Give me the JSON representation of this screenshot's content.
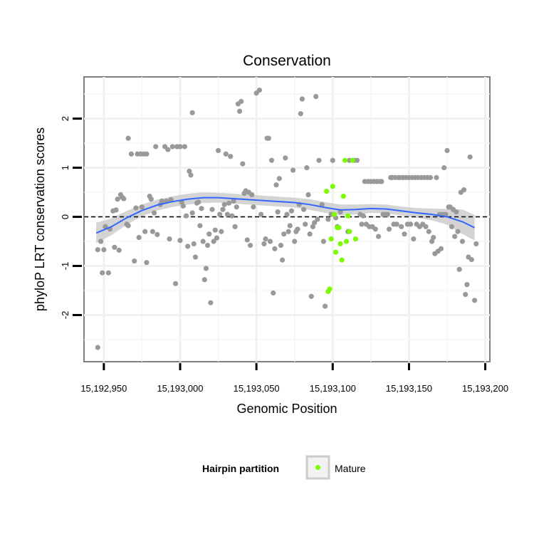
{
  "chart_data": {
    "type": "scatter",
    "title": "Conservation",
    "xlabel": "Genomic Position",
    "ylabel": "phyloP LRT conservation scores",
    "xlim": [
      15192937,
      15193203
    ],
    "ylim": [
      -2.95,
      2.85
    ],
    "x_ticks": [
      {
        "value": 15192950,
        "label": "15,192,950"
      },
      {
        "value": 15193000,
        "label": "15,193,000"
      },
      {
        "value": 15193050,
        "label": "15,193,050"
      },
      {
        "value": 15193100,
        "label": "15,193,100"
      },
      {
        "value": 15193150,
        "label": "15,193,150"
      },
      {
        "value": 15193200,
        "label": "15,193,200"
      }
    ],
    "y_ticks": [
      {
        "value": -2,
        "label": "-2"
      },
      {
        "value": -1,
        "label": "-1"
      },
      {
        "value": 0,
        "label": "0"
      },
      {
        "value": 1,
        "label": "1"
      },
      {
        "value": 2,
        "label": "2"
      }
    ],
    "reference_line": {
      "y": 0,
      "style": "dashed"
    },
    "grid": true,
    "legend": {
      "title": "Hairpin partition",
      "placement": "bottom",
      "entries": [
        {
          "label": "Mature",
          "color": "#7cfc00"
        }
      ]
    },
    "series": [
      {
        "color": "#999999",
        "points": [
          [
            15192946,
            -2.66
          ],
          [
            15192946,
            -0.67
          ],
          [
            15192948,
            -0.5
          ],
          [
            15192949,
            -1.14
          ],
          [
            15192950,
            -0.67
          ],
          [
            15192951,
            -0.2
          ],
          [
            15192953,
            -1.14
          ],
          [
            15192954,
            -0.25
          ],
          [
            15192956,
            0.12
          ],
          [
            15192957,
            -0.62
          ],
          [
            15192958,
            0.14
          ],
          [
            15192959,
            0.36
          ],
          [
            15192960,
            -0.68
          ],
          [
            15192961,
            0.45
          ],
          [
            15192962,
            0.4
          ],
          [
            15192963,
            0.37
          ],
          [
            15192965,
            -0.15
          ],
          [
            15192966,
            1.6
          ],
          [
            15192966,
            -0.18
          ],
          [
            15192968,
            1.28
          ],
          [
            15192970,
            -0.9
          ],
          [
            15192971,
            0.18
          ],
          [
            15192972,
            1.28
          ],
          [
            15192973,
            -0.42
          ],
          [
            15192974,
            1.28
          ],
          [
            15192975,
            0.2
          ],
          [
            15192976,
            1.28
          ],
          [
            15192977,
            -0.3
          ],
          [
            15192978,
            1.28
          ],
          [
            15192978,
            -0.93
          ],
          [
            15192980,
            0.42
          ],
          [
            15192981,
            0.36
          ],
          [
            15192982,
            -0.3
          ],
          [
            15192983,
            0.08
          ],
          [
            15192984,
            1.43
          ],
          [
            15192985,
            -0.36
          ],
          [
            15192987,
            0.25
          ],
          [
            15192988,
            0.32
          ],
          [
            15192990,
            1.43
          ],
          [
            15192991,
            0.32
          ],
          [
            15192992,
            1.37
          ],
          [
            15192993,
            -0.45
          ],
          [
            15192994,
            0.35
          ],
          [
            15192995,
            1.43
          ],
          [
            15192997,
            -1.36
          ],
          [
            15192998,
            1.43
          ],
          [
            15193000,
            1.43
          ],
          [
            15193000,
            -0.48
          ],
          [
            15193001,
            0.3
          ],
          [
            15193002,
            0.22
          ],
          [
            15193003,
            1.43
          ],
          [
            15193004,
            0.02
          ],
          [
            15193005,
            -0.6
          ],
          [
            15193006,
            0.93
          ],
          [
            15193007,
            0.85
          ],
          [
            15193008,
            0.08
          ],
          [
            15193008,
            2.12
          ],
          [
            15193009,
            -0.55
          ],
          [
            15193010,
            -0.82
          ],
          [
            15193011,
            0.28
          ],
          [
            15193012,
            0.3
          ],
          [
            15193013,
            -0.18
          ],
          [
            15193014,
            0.17
          ],
          [
            15193015,
            -0.5
          ],
          [
            15193016,
            -1.28
          ],
          [
            15193017,
            -1.05
          ],
          [
            15193018,
            -0.58
          ],
          [
            15193019,
            -0.35
          ],
          [
            15193020,
            -1.75
          ],
          [
            15193021,
            0.15
          ],
          [
            15193022,
            -0.5
          ],
          [
            15193023,
            -0.27
          ],
          [
            15193024,
            -0.43
          ],
          [
            15193025,
            1.35
          ],
          [
            15193026,
            0.05
          ],
          [
            15193027,
            -0.3
          ],
          [
            15193028,
            0.15
          ],
          [
            15193029,
            0.25
          ],
          [
            15193030,
            1.28
          ],
          [
            15193031,
            0.05
          ],
          [
            15193032,
            0.28
          ],
          [
            15193033,
            1.23
          ],
          [
            15193034,
            0.02
          ],
          [
            15193035,
            0.32
          ],
          [
            15193036,
            -0.2
          ],
          [
            15193037,
            0.2
          ],
          [
            15193038,
            2.3
          ],
          [
            15193039,
            2.15
          ],
          [
            15193040,
            2.35
          ],
          [
            15193041,
            1.08
          ],
          [
            15193042,
            0.48
          ],
          [
            15193043,
            0.53
          ],
          [
            15193044,
            -0.47
          ],
          [
            15193045,
            0.5
          ],
          [
            15193046,
            -0.58
          ],
          [
            15193047,
            0.45
          ],
          [
            15193048,
            0.2
          ],
          [
            15193050,
            2.52
          ],
          [
            15193052,
            2.58
          ],
          [
            15193053,
            0.05
          ],
          [
            15193055,
            -0.55
          ],
          [
            15193056,
            -0.45
          ],
          [
            15193057,
            1.6
          ],
          [
            15193058,
            1.6
          ],
          [
            15193059,
            -0.5
          ],
          [
            15193060,
            1.15
          ],
          [
            15193061,
            -1.55
          ],
          [
            15193062,
            -0.65
          ],
          [
            15193063,
            0.65
          ],
          [
            15193064,
            0.1
          ],
          [
            15193065,
            0.78
          ],
          [
            15193066,
            -0.58
          ],
          [
            15193067,
            -0.88
          ],
          [
            15193068,
            -0.35
          ],
          [
            15193069,
            1.2
          ],
          [
            15193070,
            0.05
          ],
          [
            15193071,
            -0.3
          ],
          [
            15193072,
            -0.18
          ],
          [
            15193073,
            0.12
          ],
          [
            15193074,
            0.95
          ],
          [
            15193075,
            -0.5
          ],
          [
            15193076,
            -0.3
          ],
          [
            15193077,
            -0.25
          ],
          [
            15193078,
            0.25
          ],
          [
            15193079,
            2.1
          ],
          [
            15193080,
            2.4
          ],
          [
            15193081,
            0.15
          ],
          [
            15193082,
            -0.15
          ],
          [
            15193083,
            1.0
          ],
          [
            15193084,
            0.45
          ],
          [
            15193085,
            -0.35
          ],
          [
            15193086,
            -1.62
          ],
          [
            15193087,
            -0.2
          ],
          [
            15193088,
            -0.12
          ],
          [
            15193089,
            2.45
          ],
          [
            15193090,
            -0.05
          ],
          [
            15193091,
            1.15
          ],
          [
            15193093,
            0.25
          ],
          [
            15193094,
            -0.5
          ],
          [
            15193095,
            -1.82
          ],
          [
            15193097,
            -0.05
          ],
          [
            15193099,
            0.05
          ],
          [
            15193100,
            1.15
          ],
          [
            15193102,
            -0.02
          ],
          [
            15193103,
            -0.2
          ],
          [
            15193105,
            0.1
          ],
          [
            15193110,
            -0.3
          ],
          [
            15193111,
            1.15
          ],
          [
            15193114,
            1.15
          ],
          [
            15193116,
            1.15
          ],
          [
            15193118,
            0.05
          ],
          [
            15193119,
            -0.15
          ],
          [
            15193120,
            0.02
          ],
          [
            15193121,
            0.72
          ],
          [
            15193122,
            -0.15
          ],
          [
            15193123,
            0.72
          ],
          [
            15193124,
            -0.2
          ],
          [
            15193125,
            0.72
          ],
          [
            15193126,
            -0.2
          ],
          [
            15193127,
            0.72
          ],
          [
            15193128,
            -0.25
          ],
          [
            15193129,
            0.72
          ],
          [
            15193130,
            -0.4
          ],
          [
            15193131,
            0.72
          ],
          [
            15193132,
            0.72
          ],
          [
            15193133,
            0.05
          ],
          [
            15193134,
            0.05
          ],
          [
            15193135,
            0.05
          ],
          [
            15193136,
            0.05
          ],
          [
            15193137,
            -0.25
          ],
          [
            15193138,
            0.8
          ],
          [
            15193139,
            0.8
          ],
          [
            15193140,
            -0.15
          ],
          [
            15193141,
            0.8
          ],
          [
            15193142,
            -0.15
          ],
          [
            15193143,
            0.8
          ],
          [
            15193144,
            0.8
          ],
          [
            15193145,
            -0.2
          ],
          [
            15193146,
            0.8
          ],
          [
            15193147,
            -0.35
          ],
          [
            15193148,
            0.8
          ],
          [
            15193149,
            -0.15
          ],
          [
            15193150,
            0.8
          ],
          [
            15193151,
            -0.15
          ],
          [
            15193152,
            0.8
          ],
          [
            15193153,
            -0.45
          ],
          [
            15193154,
            0.8
          ],
          [
            15193155,
            -0.15
          ],
          [
            15193156,
            0.8
          ],
          [
            15193157,
            -0.2
          ],
          [
            15193158,
            0.8
          ],
          [
            15193159,
            -0.15
          ],
          [
            15193160,
            0.8
          ],
          [
            15193161,
            -0.2
          ],
          [
            15193162,
            0.8
          ],
          [
            15193163,
            -0.3
          ],
          [
            15193164,
            0.8
          ],
          [
            15193165,
            -0.5
          ],
          [
            15193166,
            -0.42
          ],
          [
            15193167,
            -0.75
          ],
          [
            15193168,
            0.8
          ],
          [
            15193169,
            -0.7
          ],
          [
            15193170,
            0.05
          ],
          [
            15193171,
            -0.65
          ],
          [
            15193172,
            0.05
          ],
          [
            15193173,
            1.0
          ],
          [
            15193174,
            0.05
          ],
          [
            15193175,
            1.35
          ],
          [
            15193176,
            0.2
          ],
          [
            15193177,
            0.2
          ],
          [
            15193178,
            -0.2
          ],
          [
            15193179,
            0.15
          ],
          [
            15193180,
            -0.4
          ],
          [
            15193181,
            0.1
          ],
          [
            15193182,
            -0.3
          ],
          [
            15193183,
            -1.07
          ],
          [
            15193184,
            0.5
          ],
          [
            15193185,
            -0.5
          ],
          [
            15193186,
            0.55
          ],
          [
            15193187,
            -1.58
          ],
          [
            15193188,
            -1.38
          ],
          [
            15193189,
            -0.82
          ],
          [
            15193190,
            1.22
          ],
          [
            15193191,
            -0.87
          ],
          [
            15193193,
            -1.7
          ],
          [
            15193194,
            -0.55
          ]
        ]
      },
      {
        "name": "Mature",
        "color": "#7cfc00",
        "points": [
          [
            15193096,
            0.52
          ],
          [
            15193097,
            -1.52
          ],
          [
            15193098,
            -1.47
          ],
          [
            15193099,
            -0.45
          ],
          [
            15193100,
            0.62
          ],
          [
            15193101,
            0.05
          ],
          [
            15193102,
            -0.72
          ],
          [
            15193103,
            -0.22
          ],
          [
            15193104,
            -0.22
          ],
          [
            15193105,
            -0.55
          ],
          [
            15193106,
            -0.88
          ],
          [
            15193107,
            0.42
          ],
          [
            15193108,
            1.15
          ],
          [
            15193109,
            -0.5
          ],
          [
            15193110,
            0.02
          ],
          [
            15193111,
            -0.3
          ],
          [
            15193113,
            1.15
          ],
          [
            15193115,
            -0.45
          ]
        ]
      }
    ],
    "smooth": {
      "color": "#3366ff",
      "band_color": "#cccccc",
      "x": [
        15192945,
        15192955,
        15192965,
        15192975,
        15192985,
        15192995,
        15193005,
        15193015,
        15193025,
        15193035,
        15193045,
        15193055,
        15193065,
        15193075,
        15193085,
        15193095,
        15193105,
        15193115,
        15193125,
        15193135,
        15193145,
        15193155,
        15193165,
        15193175,
        15193185,
        15193193
      ],
      "fit": [
        -0.33,
        -0.2,
        -0.02,
        0.13,
        0.24,
        0.31,
        0.36,
        0.39,
        0.39,
        0.37,
        0.35,
        0.33,
        0.31,
        0.29,
        0.25,
        0.19,
        0.14,
        0.15,
        0.17,
        0.16,
        0.12,
        0.08,
        0.05,
        0.0,
        -0.1,
        -0.22
      ],
      "lower": [
        -0.54,
        -0.37,
        -0.16,
        0.01,
        0.13,
        0.2,
        0.25,
        0.28,
        0.29,
        0.27,
        0.25,
        0.23,
        0.21,
        0.19,
        0.14,
        0.08,
        0.03,
        0.05,
        0.08,
        0.07,
        0.03,
        -0.02,
        -0.07,
        -0.16,
        -0.35,
        -0.48
      ],
      "upper": [
        -0.12,
        -0.03,
        0.12,
        0.25,
        0.35,
        0.42,
        0.47,
        0.5,
        0.49,
        0.47,
        0.45,
        0.43,
        0.41,
        0.39,
        0.36,
        0.3,
        0.25,
        0.25,
        0.26,
        0.25,
        0.21,
        0.18,
        0.17,
        0.16,
        0.15,
        0.04
      ]
    }
  }
}
